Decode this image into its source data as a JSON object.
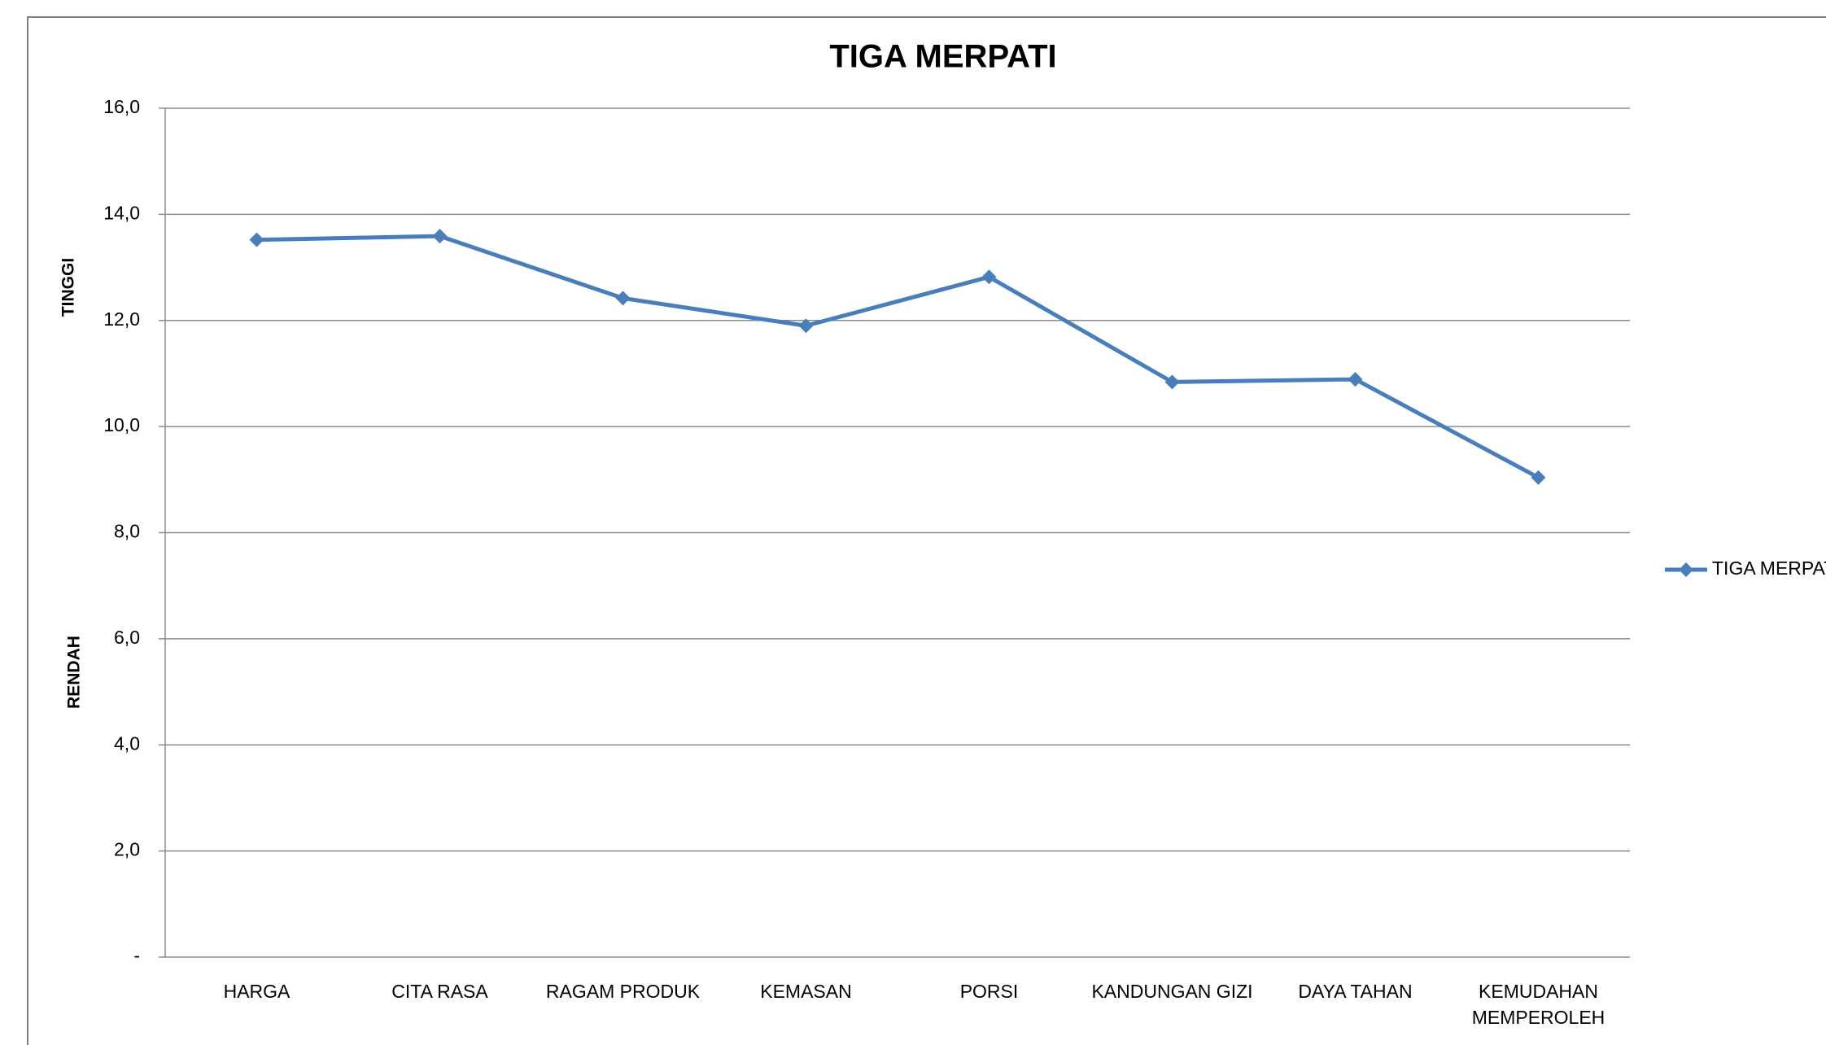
{
  "chart_data": {
    "type": "line",
    "title": "TIGA MERPATI",
    "y_label_high": "TINGGI",
    "y_label_low": "RENDAH",
    "categories": [
      "HARGA",
      "CITA RASA",
      "RAGAM PRODUK",
      "KEMASAN",
      "PORSI",
      "KANDUNGAN GIZI",
      "DAYA TAHAN",
      "KEMUDAHAN MEMPEROLEH"
    ],
    "series": [
      {
        "name": "TIGA MERPATI",
        "color": "#4a7ebb",
        "values": [
          13.52,
          13.59,
          12.42,
          11.9,
          12.82,
          10.84,
          10.89,
          9.04
        ]
      }
    ],
    "ylim": [
      0,
      16
    ],
    "yticks": [
      {
        "value": 0,
        "label": "-"
      },
      {
        "value": 2,
        "label": "2,0"
      },
      {
        "value": 4,
        "label": "4,0"
      },
      {
        "value": 6,
        "label": "6,0"
      },
      {
        "value": 8,
        "label": "8,0"
      },
      {
        "value": 10,
        "label": "10,0"
      },
      {
        "value": 12,
        "label": "12,0"
      },
      {
        "value": 14,
        "label": "14,0"
      },
      {
        "value": 16,
        "label": "16,0"
      }
    ],
    "grid": true,
    "legend": "right"
  }
}
